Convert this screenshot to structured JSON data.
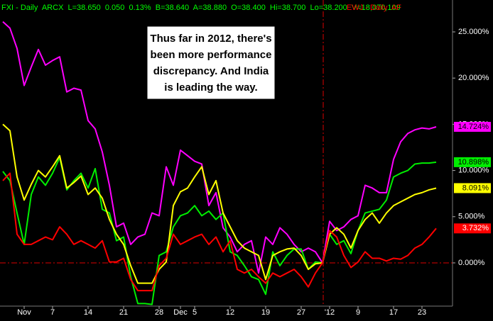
{
  "chart_data": {
    "type": "line",
    "header": [
      {
        "text": "FXI - Daily  ARCX  L=38.650  0.050  0.13%  B=38.640  A=38.880  O=38.400  Hi=38.700  Lo=38.200  V=18,070,109",
        "color": "#00ff00"
      },
      {
        "text": "EWJ - Daily  AF",
        "color": "#ff0000"
      }
    ],
    "annotation": [
      "Thus far in 2012, there's",
      "been more performance",
      "discrepancy.  And India",
      "is leading the way."
    ],
    "categories": [
      null,
      null,
      null,
      "Nov",
      null,
      null,
      null,
      "7",
      null,
      null,
      null,
      null,
      "14",
      null,
      null,
      null,
      null,
      "21",
      null,
      null,
      null,
      null,
      "28",
      null,
      null,
      "Dec",
      null,
      "5",
      null,
      null,
      null,
      null,
      "12",
      null,
      null,
      null,
      null,
      "19",
      null,
      null,
      null,
      null,
      "27",
      null,
      null,
      null,
      "'12",
      null,
      null,
      null,
      "9",
      null,
      null,
      null,
      null,
      "17",
      null,
      null,
      null,
      "23",
      null,
      null
    ],
    "ylim": [
      -4.68,
      28.45
    ],
    "yticks": [
      {
        "value": 0,
        "label": "0.000%"
      },
      {
        "value": 5,
        "label": "5.000%"
      },
      {
        "value": 10,
        "label": "10.000%"
      },
      {
        "value": 15,
        "label": "15.000%"
      },
      {
        "value": 20,
        "label": "20.000%"
      },
      {
        "value": 25,
        "label": "25.000%"
      }
    ],
    "series": [
      {
        "color": "#ff00ff",
        "values": [
          26.1,
          25.4,
          23.2,
          19.2,
          21.2,
          23.1,
          21.4,
          21.9,
          22.3,
          18.5,
          18.9,
          18.7,
          15.4,
          14.5,
          12.0,
          8.4,
          3.9,
          4.3,
          2.0,
          2.8,
          3.1,
          5.4,
          5.1,
          10.4,
          8.4,
          12.2,
          11.6,
          11.0,
          10.7,
          6.2,
          7.6,
          3.8,
          2.8,
          1.2,
          2.0,
          2.4,
          -1.1,
          2.8,
          2.0,
          3.8,
          3.1,
          2.0,
          1.2,
          1.6,
          1.2,
          0,
          4.5,
          3.5,
          3.9,
          4.7,
          5.1,
          8.4,
          8.1,
          7.6,
          7.6,
          11.2,
          13.1,
          14.0,
          14.4,
          14.6,
          14.5,
          14.724
        ],
        "value_labels": [
          null,
          null,
          null,
          null,
          null,
          null,
          null,
          null,
          null,
          null,
          null,
          null,
          null,
          null,
          null,
          null,
          null,
          null,
          null,
          null,
          null,
          null,
          null,
          null,
          null,
          null,
          null,
          null,
          null,
          null,
          null,
          null,
          null,
          null,
          null,
          null,
          null,
          null,
          null,
          null,
          null,
          null,
          null,
          null,
          null,
          null,
          null,
          null,
          null,
          null,
          null,
          null,
          null,
          null,
          null,
          null,
          null,
          null,
          null,
          null,
          null,
          "14.724%"
        ]
      },
      {
        "color": "#00ee00",
        "values": [
          9.9,
          8.9,
          5.4,
          2.0,
          7.4,
          9.3,
          8.4,
          9.7,
          11.4,
          7.9,
          8.9,
          9.7,
          8.1,
          10.2,
          5.8,
          5.4,
          2.4,
          2.8,
          -1.5,
          -4.4,
          -4.4,
          -4.5,
          0.8,
          1.2,
          3.9,
          5.1,
          5.4,
          6.2,
          5.1,
          5.6,
          4.7,
          5.4,
          1.2,
          0.8,
          -0.3,
          -1.5,
          -1.8,
          -3.4,
          1.2,
          -0.3,
          0.8,
          1.5,
          1.5,
          -0.7,
          0.1,
          0,
          3.1,
          2.0,
          2.4,
          1.0,
          3.5,
          5.4,
          5.6,
          5.8,
          6.8,
          9.3,
          9.7,
          10.0,
          10.7,
          10.8,
          10.8,
          10.898
        ],
        "value_labels": [
          null,
          null,
          null,
          null,
          null,
          null,
          null,
          null,
          null,
          null,
          null,
          null,
          null,
          null,
          null,
          null,
          null,
          null,
          null,
          null,
          null,
          null,
          null,
          null,
          null,
          null,
          null,
          null,
          null,
          null,
          null,
          null,
          null,
          null,
          null,
          null,
          null,
          null,
          null,
          null,
          null,
          null,
          null,
          null,
          null,
          null,
          null,
          null,
          null,
          null,
          null,
          null,
          null,
          null,
          null,
          null,
          null,
          null,
          null,
          null,
          null,
          "10.898%"
        ]
      },
      {
        "color": "#ffff00",
        "values": [
          15.0,
          14.3,
          9.3,
          6.8,
          8.5,
          10.0,
          9.3,
          10.4,
          11.6,
          8.1,
          8.7,
          9.4,
          7.4,
          8.1,
          7.0,
          4.7,
          3.1,
          2.0,
          -0.3,
          -2.2,
          -2.2,
          -2.2,
          -0.7,
          0.1,
          6.2,
          7.7,
          8.1,
          9.3,
          10.4,
          7.4,
          8.9,
          5.4,
          3.9,
          2.4,
          1.6,
          1.2,
          0.8,
          -1.8,
          0.8,
          1.2,
          1.5,
          1.6,
          0.8,
          -0.7,
          -0.1,
          0,
          3.1,
          3.8,
          3.1,
          1.6,
          3.5,
          4.7,
          5.4,
          4.3,
          5.4,
          6.2,
          6.6,
          7.0,
          7.4,
          7.6,
          7.9,
          8.091
        ],
        "value_labels": [
          null,
          null,
          null,
          null,
          null,
          null,
          null,
          null,
          null,
          null,
          null,
          null,
          null,
          null,
          null,
          null,
          null,
          null,
          null,
          null,
          null,
          null,
          null,
          null,
          null,
          null,
          null,
          null,
          null,
          null,
          null,
          null,
          null,
          null,
          null,
          null,
          null,
          null,
          null,
          null,
          null,
          null,
          null,
          null,
          null,
          null,
          null,
          null,
          null,
          null,
          null,
          null,
          null,
          null,
          null,
          null,
          null,
          null,
          null,
          null,
          null,
          "8.091%"
        ]
      },
      {
        "color": "#ff0000",
        "values": [
          8.9,
          9.7,
          3.1,
          2.0,
          2.0,
          2.4,
          2.8,
          2.5,
          3.9,
          3.1,
          2.0,
          2.4,
          2.0,
          1.6,
          2.4,
          0.1,
          0.1,
          0.5,
          -1.8,
          -3.0,
          -3.0,
          -3.0,
          -0.3,
          0.5,
          3.1,
          2.0,
          2.4,
          2.8,
          3.1,
          2.0,
          2.8,
          1.2,
          2.4,
          -0.7,
          -1.1,
          -0.7,
          -1.5,
          -2.2,
          -1.1,
          -1.5,
          -1.1,
          -0.7,
          -1.5,
          -2.6,
          -1.1,
          0,
          3.5,
          2.8,
          0.8,
          -0.5,
          0.1,
          1.2,
          0.5,
          0.5,
          0.2,
          0.5,
          0.4,
          0.8,
          1.6,
          2.0,
          2.8,
          3.732
        ],
        "value_labels": [
          null,
          null,
          null,
          null,
          null,
          null,
          null,
          null,
          null,
          null,
          null,
          null,
          null,
          null,
          null,
          null,
          null,
          null,
          null,
          null,
          null,
          null,
          null,
          null,
          null,
          null,
          null,
          null,
          null,
          null,
          null,
          null,
          null,
          null,
          null,
          null,
          null,
          null,
          null,
          null,
          null,
          null,
          null,
          null,
          null,
          null,
          null,
          null,
          null,
          null,
          null,
          null,
          null,
          null,
          null,
          null,
          null,
          null,
          null,
          null,
          null,
          "3.732%"
        ]
      }
    ]
  }
}
